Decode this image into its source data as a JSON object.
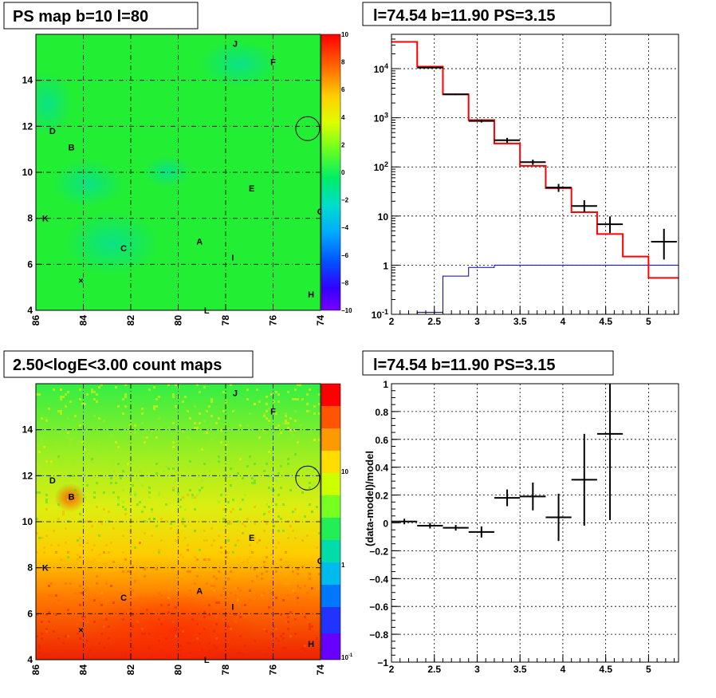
{
  "titles": {
    "ps_map": "PS map b=10 l=80",
    "spectrum": "l=74.54 b=11.90 PS=3.15",
    "count_map": "2.50<logE<3.00 count maps",
    "residual": "l=74.54 b=11.90 PS=3.15"
  },
  "colors": {
    "ps_map_base": "#22ee33",
    "count_map_top": "#66ee22",
    "count_map_bottom": "#ee3300",
    "data_line": "#000000",
    "model_line": "#ff0000",
    "background_line": "#0000cc"
  },
  "sources": [
    {
      "name": "J",
      "l": 77.6,
      "b": 15.6
    },
    {
      "name": "F",
      "l": 76.0,
      "b": 14.8
    },
    {
      "name": "D",
      "l": 85.3,
      "b": 11.8
    },
    {
      "name": "B",
      "l": 84.5,
      "b": 11.1
    },
    {
      "name": "E",
      "l": 76.9,
      "b": 9.3
    },
    {
      "name": "K",
      "l": 85.6,
      "b": 8.0
    },
    {
      "name": "G",
      "l": 74.0,
      "b": 8.3
    },
    {
      "name": "A",
      "l": 79.1,
      "b": 7.0
    },
    {
      "name": "C",
      "l": 82.3,
      "b": 6.7
    },
    {
      "name": "I",
      "l": 77.7,
      "b": 6.3
    },
    {
      "name": "H",
      "l": 74.4,
      "b": 4.7
    },
    {
      "name": "L",
      "l": 78.8,
      "b": 4.0
    }
  ],
  "marker": {
    "symbol": "×",
    "l": 84.1,
    "b": 5.3
  },
  "circle": {
    "l": 74.54,
    "b": 11.9
  },
  "chart_data": [
    {
      "type": "heatmap",
      "title": "PS map b=10 l=80",
      "x_ticks": [
        "86",
        "84",
        "82",
        "80",
        "78",
        "76",
        "74"
      ],
      "y_ticks": [
        "4",
        "6",
        "8",
        "10",
        "12",
        "14"
      ],
      "xlim": [
        86,
        74
      ],
      "ylim": [
        4,
        16
      ],
      "color_scale": {
        "min": -10,
        "max": 10,
        "ticks": [
          "10",
          "8",
          "6",
          "4",
          "2",
          "0",
          "−2",
          "−4",
          "−6",
          "−8",
          "−10"
        ]
      },
      "grid": true
    },
    {
      "type": "line",
      "title": "l=74.54 b=11.90 PS=3.15",
      "xlim": [
        2,
        5.35
      ],
      "ylim": [
        0.1,
        50000
      ],
      "log_y": true,
      "x_ticks": [
        "2",
        "2.5",
        "3",
        "3.5",
        "4",
        "4.5",
        "5"
      ],
      "y_ticks": [
        "10^-1",
        "1",
        "10",
        "10^2",
        "10^3",
        "10^4"
      ],
      "grid": true,
      "model_step": {
        "edges": [
          2.0,
          2.3,
          2.6,
          2.9,
          3.2,
          3.5,
          3.8,
          4.1,
          4.4,
          4.7,
          5.0,
          5.35
        ],
        "values": [
          35000,
          11000,
          3000,
          900,
          300,
          105,
          37,
          12,
          4.3,
          1.5,
          0.55
        ]
      },
      "background_step": {
        "edges": [
          2.0,
          2.3,
          2.6,
          2.9,
          3.2,
          5.35
        ],
        "values": [
          0.08,
          0.11,
          0.6,
          0.9,
          1.0
        ]
      },
      "data_points": [
        {
          "x": 2.45,
          "xerr": 0.15,
          "y": 10500,
          "yerr_lo": 300,
          "yerr_hi": 300
        },
        {
          "x": 2.75,
          "xerr": 0.15,
          "y": 3000,
          "yerr_lo": 100,
          "yerr_hi": 100
        },
        {
          "x": 3.05,
          "xerr": 0.15,
          "y": 860,
          "yerr_lo": 60,
          "yerr_hi": 60
        },
        {
          "x": 3.35,
          "xerr": 0.15,
          "y": 350,
          "yerr_lo": 40,
          "yerr_hi": 40
        },
        {
          "x": 3.65,
          "xerr": 0.15,
          "y": 125,
          "yerr_lo": 15,
          "yerr_hi": 15
        },
        {
          "x": 3.95,
          "xerr": 0.15,
          "y": 38,
          "yerr_lo": 7,
          "yerr_hi": 7
        },
        {
          "x": 4.25,
          "xerr": 0.15,
          "y": 16,
          "yerr_lo": 4,
          "yerr_hi": 5
        },
        {
          "x": 4.55,
          "xerr": 0.15,
          "y": 6.8,
          "yerr_lo": 2.3,
          "yerr_hi": 3
        },
        {
          "x": 5.18,
          "xerr": 0.15,
          "y": 3,
          "yerr_lo": 1.7,
          "yerr_hi": 2.5
        }
      ]
    },
    {
      "type": "heatmap",
      "title": "2.50<logE<3.00 count maps",
      "x_ticks": [
        "86",
        "84",
        "82",
        "80",
        "78",
        "76",
        "74"
      ],
      "y_ticks": [
        "4",
        "6",
        "8",
        "10",
        "12",
        "14"
      ],
      "xlim": [
        86,
        74
      ],
      "ylim": [
        4,
        16
      ],
      "color_scale": {
        "log": true,
        "ticks": [
          "10",
          "1",
          "10^-1"
        ]
      },
      "grid": true
    },
    {
      "type": "scatter",
      "title": "l=74.54 b=11.90 PS=3.15",
      "ylabel": "(data-model)/model",
      "xlim": [
        2,
        5.35
      ],
      "ylim": [
        -1,
        1
      ],
      "x_ticks": [
        "2",
        "2.5",
        "3",
        "3.5",
        "4",
        "4.5",
        "5"
      ],
      "y_ticks": [
        "1",
        "0.8",
        "0.6",
        "0.4",
        "0.2",
        "0",
        "−0.2",
        "−0.4",
        "−0.6",
        "−0.8",
        "−1"
      ],
      "grid": true,
      "points": [
        {
          "x": 2.15,
          "xerr": 0.15,
          "y": 0.01,
          "yerr": 0.02
        },
        {
          "x": 2.45,
          "xerr": 0.15,
          "y": -0.02,
          "yerr": 0.02
        },
        {
          "x": 2.75,
          "xerr": 0.15,
          "y": -0.035,
          "yerr": 0.02
        },
        {
          "x": 3.05,
          "xerr": 0.15,
          "y": -0.065,
          "yerr": 0.04
        },
        {
          "x": 3.35,
          "xerr": 0.15,
          "y": 0.18,
          "yerr": 0.06
        },
        {
          "x": 3.65,
          "xerr": 0.15,
          "y": 0.19,
          "yerr": 0.1
        },
        {
          "x": 3.95,
          "xerr": 0.15,
          "y": 0.04,
          "yerr": 0.17
        },
        {
          "x": 4.25,
          "xerr": 0.15,
          "y": 0.31,
          "yerr": 0.33
        },
        {
          "x": 4.55,
          "xerr": 0.15,
          "y": 0.64,
          "yerr": 0.62
        }
      ]
    }
  ]
}
